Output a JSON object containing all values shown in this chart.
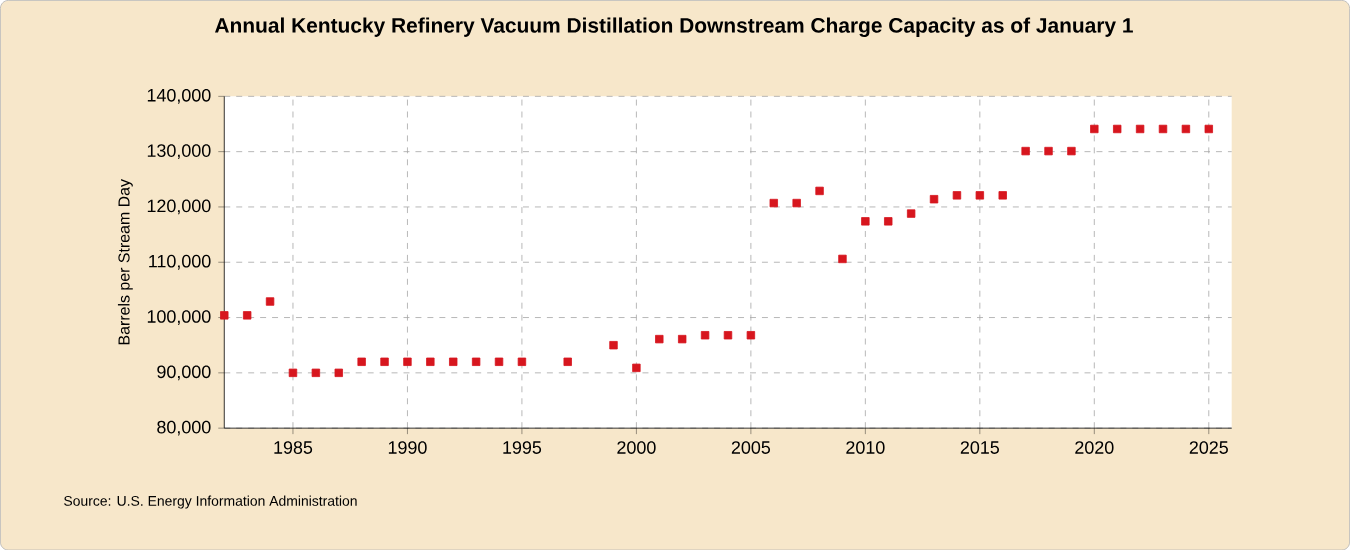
{
  "chart_data": {
    "type": "scatter",
    "title": "Annual Kentucky Refinery Vacuum Distillation Downstream Charge Capacity as of January 1",
    "ylabel": "Barrels per Stream Day",
    "annotations": [
      "Source: U.S. Energy Information Administration"
    ],
    "x": [
      1982,
      1983,
      1984,
      1985,
      1986,
      1987,
      1988,
      1989,
      1990,
      1991,
      1992,
      1993,
      1994,
      1995,
      1997,
      1999,
      2000,
      2001,
      2002,
      2003,
      2004,
      2005,
      2006,
      2007,
      2008,
      2009,
      2010,
      2011,
      2012,
      2013,
      2014,
      2015,
      2016,
      2017,
      2018,
      2019,
      2020,
      2021,
      2022,
      2023,
      2024,
      2025
    ],
    "series": [
      {
        "color": "#d7161e",
        "values": [
          100400,
          100400,
          102900,
          90000,
          90000,
          90000,
          92000,
          92000,
          92000,
          92000,
          92000,
          92000,
          92000,
          92000,
          92000,
          95000,
          90900,
          96100,
          96100,
          96800,
          96800,
          96800,
          120700,
          120700,
          122900,
          110600,
          117400,
          117400,
          118800,
          121400,
          122100,
          122100,
          122100,
          130100,
          130100,
          130100,
          134100,
          134100,
          134100,
          134100,
          134100,
          134100
        ]
      }
    ],
    "xlim": [
      1982,
      2026
    ],
    "xticks": [
      1985,
      1990,
      1995,
      2000,
      2005,
      2010,
      2015,
      2020,
      2025
    ],
    "ylim": [
      80000,
      140000
    ],
    "yticks": [
      {
        "value": 80000,
        "label": "80,000"
      },
      {
        "value": 90000,
        "label": "90,000"
      },
      {
        "value": 100000,
        "label": "100,000"
      },
      {
        "value": 110000,
        "label": "110,000"
      },
      {
        "value": 120000,
        "label": "120,000"
      },
      {
        "value": 130000,
        "label": "130,000"
      },
      {
        "value": 140000,
        "label": "140,000"
      }
    ],
    "grid": true,
    "marker": "square"
  }
}
